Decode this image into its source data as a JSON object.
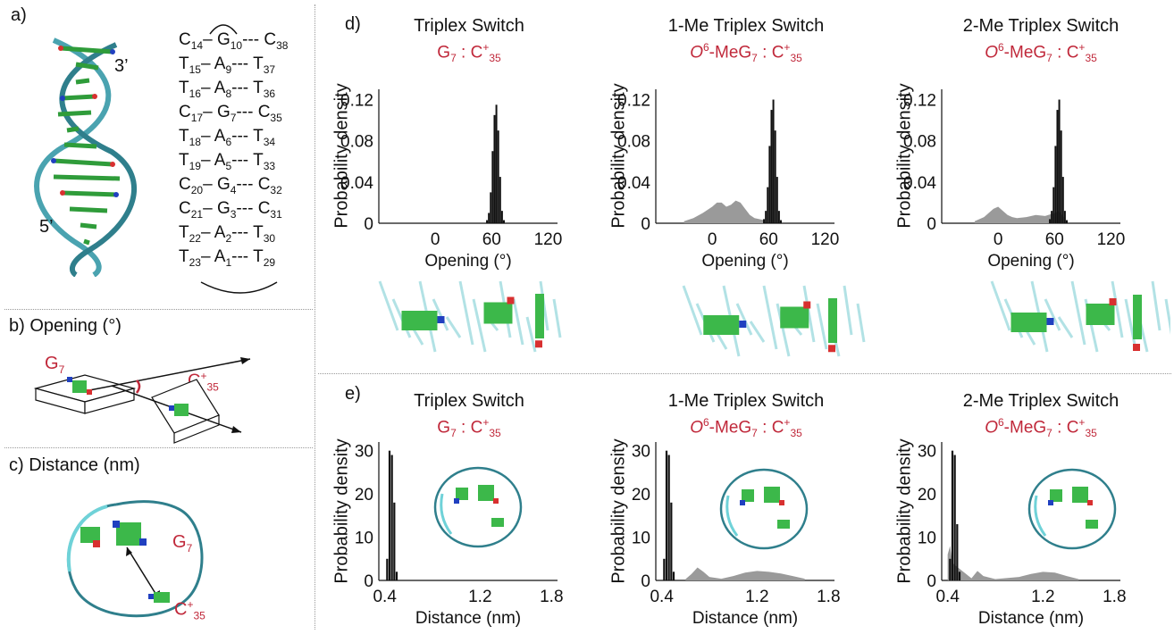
{
  "panels": {
    "a": {
      "label": "a)",
      "end3": "3’",
      "end5": "5’"
    },
    "b": {
      "label": "b)",
      "title": "Opening (°)",
      "g": "G",
      "g_sub": "7",
      "c": "C",
      "c_sup": "+",
      "c_sub": "35"
    },
    "c": {
      "label": "c)",
      "title": "Distance (nm)",
      "g": "G",
      "g_sub": "7",
      "c": "C",
      "c_sup": "+",
      "c_sub": "35"
    },
    "d": {
      "label": "d)"
    },
    "e": {
      "label": "e)"
    }
  },
  "basepairs": [
    {
      "l": "C",
      "ls": "14",
      "m": "G",
      "ms": "10",
      "r": "C",
      "rs": "38"
    },
    {
      "l": "T",
      "ls": "15",
      "m": "A",
      "ms": "9",
      "r": "T",
      "rs": "37"
    },
    {
      "l": "T",
      "ls": "16",
      "m": "A",
      "ms": "8",
      "r": "T",
      "rs": "36"
    },
    {
      "l": "C",
      "ls": "17",
      "m": "G",
      "ms": "7",
      "r": "C",
      "rs": "35"
    },
    {
      "l": "T",
      "ls": "18",
      "m": "A",
      "ms": "6",
      "r": "T",
      "rs": "34"
    },
    {
      "l": "T",
      "ls": "19",
      "m": "A",
      "ms": "5",
      "r": "T",
      "rs": "33"
    },
    {
      "l": "C",
      "ls": "20",
      "m": "G",
      "ms": "4",
      "r": "C",
      "rs": "32"
    },
    {
      "l": "C",
      "ls": "21",
      "m": "G",
      "ms": "3",
      "r": "C",
      "rs": "31"
    },
    {
      "l": "T",
      "ls": "22",
      "m": "A",
      "ms": "2",
      "r": "T",
      "rs": "30"
    },
    {
      "l": "T",
      "ls": "23",
      "m": "A",
      "ms": "1",
      "r": "T",
      "rs": "29"
    }
  ],
  "titles": [
    "Triplex Switch",
    "1-Me Triplex Switch",
    "2-Me Triplex Switch"
  ],
  "subs": [
    {
      "pre": "",
      "g": "G",
      "gs": "7",
      "mid": " : C",
      "csup": "+",
      "cs": "35"
    },
    {
      "pre": "O",
      "presup": "6",
      "g": "-MeG",
      "gs": "7",
      "mid": " : C",
      "csup": "+",
      "cs": "35"
    },
    {
      "pre": "O",
      "presup": "6",
      "g": "-MeG",
      "gs": "7",
      "mid": " : C",
      "csup": "+",
      "cs": "35"
    }
  ],
  "colors": {
    "red": "#c0283a",
    "black": "#111111",
    "gray": "#9a9a9a",
    "cyan": "#5cc8cf"
  },
  "chart_data": [
    {
      "type": "bar",
      "panel": "d",
      "title": "Triplex Switch",
      "xlabel": "Opening (°)",
      "ylabel": "Probability density",
      "xlim": [
        -60,
        130
      ],
      "ylim": [
        0,
        0.13
      ],
      "xticks": [
        "0",
        "60",
        "120"
      ],
      "yticks": [
        "0",
        "0.04",
        "0.08",
        "0.12"
      ],
      "series": [
        {
          "color": "black",
          "x": [
            55,
            57,
            59,
            61,
            63,
            65,
            67,
            69,
            71,
            73
          ],
          "values": [
            0.003,
            0.01,
            0.03,
            0.07,
            0.105,
            0.115,
            0.09,
            0.045,
            0.012,
            0.003
          ]
        }
      ]
    },
    {
      "type": "bar",
      "panel": "d",
      "title": "1-Me Triplex Switch",
      "xlabel": "Opening (°)",
      "ylabel": "Probability density",
      "xlim": [
        -60,
        130
      ],
      "ylim": [
        0,
        0.13
      ],
      "xticks": [
        "0",
        "60",
        "120"
      ],
      "yticks": [
        "0",
        "0.04",
        "0.08",
        "0.12"
      ],
      "series": [
        {
          "color": "gray",
          "x": [
            -30,
            -20,
            -10,
            -5,
            0,
            5,
            10,
            15,
            20,
            25,
            30,
            35,
            40,
            45,
            50,
            55
          ],
          "values": [
            0.002,
            0.005,
            0.01,
            0.013,
            0.016,
            0.02,
            0.02,
            0.016,
            0.018,
            0.022,
            0.02,
            0.014,
            0.008,
            0.005,
            0.004,
            0.003
          ]
        },
        {
          "color": "black",
          "x": [
            55,
            57,
            59,
            61,
            63,
            65,
            67,
            69,
            71,
            73
          ],
          "values": [
            0.004,
            0.012,
            0.035,
            0.075,
            0.11,
            0.12,
            0.09,
            0.045,
            0.012,
            0.003
          ]
        }
      ]
    },
    {
      "type": "bar",
      "panel": "d",
      "title": "2-Me Triplex Switch",
      "xlabel": "Opening (°)",
      "ylabel": "Probability density",
      "xlim": [
        -60,
        130
      ],
      "ylim": [
        0,
        0.13
      ],
      "xticks": [
        "0",
        "60",
        "120"
      ],
      "yticks": [
        "0",
        "0.04",
        "0.08",
        "0.12"
      ],
      "series": [
        {
          "color": "gray",
          "x": [
            -25,
            -15,
            -10,
            -5,
            0,
            5,
            10,
            15,
            20,
            30,
            40,
            50,
            60,
            65,
            70
          ],
          "values": [
            0.002,
            0.006,
            0.01,
            0.014,
            0.016,
            0.012,
            0.008,
            0.006,
            0.005,
            0.006,
            0.008,
            0.007,
            0.01,
            0.012,
            0.006
          ]
        },
        {
          "color": "black",
          "x": [
            55,
            57,
            59,
            61,
            63,
            65,
            67,
            69,
            71,
            73
          ],
          "values": [
            0.004,
            0.012,
            0.035,
            0.075,
            0.11,
            0.12,
            0.09,
            0.045,
            0.012,
            0.003
          ]
        }
      ]
    },
    {
      "type": "bar",
      "panel": "e",
      "title": "Triplex Switch",
      "xlabel": "Distance (nm)",
      "ylabel": "Probability density",
      "xlim": [
        0.35,
        1.85
      ],
      "ylim": [
        0,
        32
      ],
      "xticks": [
        "0.4",
        "1.2",
        "1.8"
      ],
      "yticks": [
        "0",
        "10",
        "20",
        "30"
      ],
      "series": [
        {
          "color": "black",
          "x": [
            0.42,
            0.44,
            0.46,
            0.48,
            0.5
          ],
          "values": [
            5,
            30,
            29,
            18,
            2
          ]
        }
      ]
    },
    {
      "type": "bar",
      "panel": "e",
      "title": "1-Me Triplex Switch",
      "xlabel": "Distance (nm)",
      "ylabel": "Probability density",
      "xlim": [
        0.35,
        1.85
      ],
      "ylim": [
        0,
        32
      ],
      "xticks": [
        "0.4",
        "1.2",
        "1.8"
      ],
      "yticks": [
        "0",
        "10",
        "20",
        "30"
      ],
      "series": [
        {
          "color": "gray",
          "x": [
            0.6,
            0.65,
            0.7,
            0.75,
            0.8,
            0.9,
            1.0,
            1.1,
            1.2,
            1.3,
            1.4,
            1.5,
            1.6
          ],
          "values": [
            0.3,
            1.5,
            3,
            2,
            0.8,
            0.4,
            1,
            1.8,
            2.2,
            2,
            1.6,
            1,
            0.4
          ]
        },
        {
          "color": "black",
          "x": [
            0.42,
            0.44,
            0.46,
            0.48,
            0.5
          ],
          "values": [
            5,
            30,
            29,
            18,
            2
          ]
        }
      ]
    },
    {
      "type": "bar",
      "panel": "e",
      "title": "2-Me Triplex Switch",
      "xlabel": "Distance (nm)",
      "ylabel": "Probability density",
      "xlim": [
        0.35,
        1.85
      ],
      "ylim": [
        0,
        32
      ],
      "xticks": [
        "0.4",
        "1.2",
        "1.8"
      ],
      "yticks": [
        "0",
        "10",
        "20",
        "30"
      ],
      "series": [
        {
          "color": "gray",
          "x": [
            0.4,
            0.42,
            0.44,
            0.6,
            0.65,
            0.7,
            0.8,
            1.0,
            1.1,
            1.2,
            1.3,
            1.4,
            1.5
          ],
          "values": [
            6,
            8,
            4,
            0.5,
            2.2,
            1,
            0.3,
            0.8,
            1.5,
            2,
            1.8,
            1,
            0.3
          ]
        },
        {
          "color": "black",
          "x": [
            0.42,
            0.44,
            0.46,
            0.48,
            0.5
          ],
          "values": [
            5,
            30,
            29,
            13,
            2
          ]
        }
      ]
    }
  ]
}
